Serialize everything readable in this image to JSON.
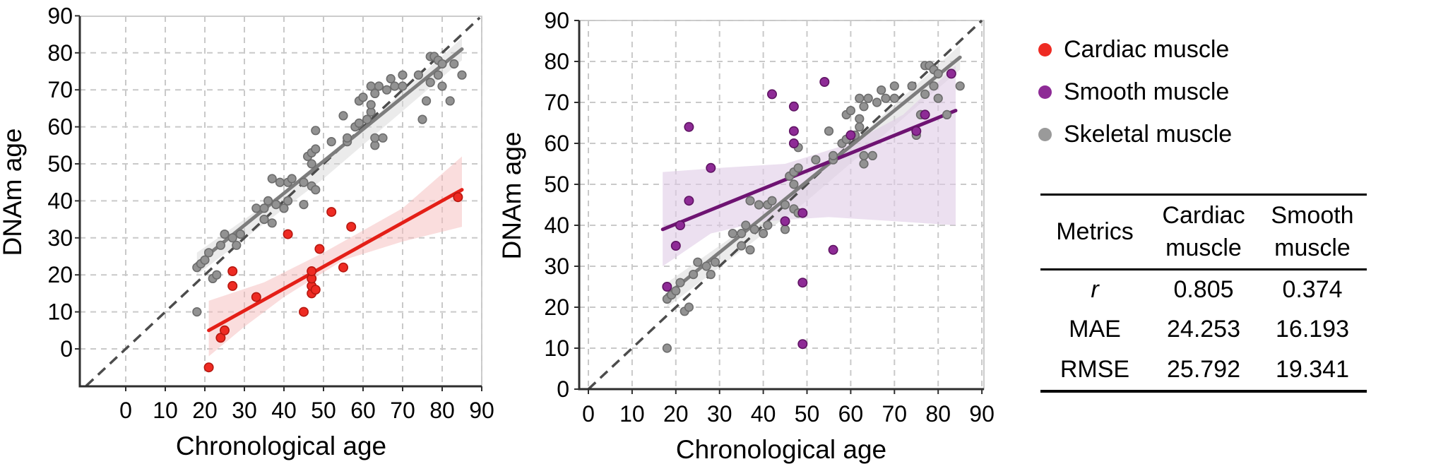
{
  "colors": {
    "grid": "#c9c9c9",
    "axis": "#2e2e2e",
    "identity": "#4c4c4c",
    "text": "#000000"
  },
  "legend": {
    "items": [
      {
        "label": "Cardiac muscle",
        "color": "#ee2b23"
      },
      {
        "label": "Smooth muscle",
        "color": "#8e2b96"
      },
      {
        "label": "Skeletal muscle",
        "color": "#9a9a9a"
      }
    ]
  },
  "table": {
    "header": {
      "metrics": "Metrics",
      "cols": [
        "Cardiac muscle",
        "Smooth muscle"
      ]
    },
    "rows": [
      {
        "label": "r",
        "values": [
          "0.805",
          "0.374"
        ]
      },
      {
        "label": "MAE",
        "values": [
          "24.253",
          "16.193"
        ]
      },
      {
        "label": "RMSE",
        "values": [
          "25.792",
          "19.341"
        ]
      }
    ]
  },
  "chart_data": [
    {
      "type": "scatter",
      "name": "cardiac-vs-skeletal",
      "xlabel": "Chronological age",
      "ylabel": "DNAm age",
      "x_ticks": [
        0,
        10,
        20,
        30,
        40,
        50,
        60,
        70,
        80,
        90
      ],
      "y_ticks": [
        0,
        10,
        20,
        30,
        40,
        50,
        60,
        70,
        80,
        90
      ],
      "xlim": [
        -11,
        90
      ],
      "ylim": [
        -10,
        90
      ],
      "grid": true,
      "legend_position": "outside-right",
      "identity": [
        [
          -10,
          -10
        ],
        [
          89.5,
          89.5
        ]
      ],
      "series": [
        {
          "name": "Skeletal muscle",
          "color": "#929292",
          "edge": "#6d6d6d",
          "line_color": "#7d7d7d",
          "band_color": "#d8d8d8",
          "band_opacity": 0.5,
          "r": 5.8,
          "regression": [
            [
              18,
              23
            ],
            [
              85,
              81
            ]
          ],
          "band": [
            [
              18,
              26
            ],
            [
              50,
              50
            ],
            [
              85,
              84
            ],
            [
              85,
              78
            ],
            [
              50,
              46
            ],
            [
              18,
              20
            ]
          ],
          "points": [
            [
              18,
              10
            ],
            [
              18,
              22
            ],
            [
              19,
              23
            ],
            [
              20,
              24
            ],
            [
              21,
              26
            ],
            [
              22,
              19
            ],
            [
              23,
              20
            ],
            [
              24,
              28
            ],
            [
              25,
              31
            ],
            [
              27,
              30
            ],
            [
              28,
              28
            ],
            [
              29,
              31
            ],
            [
              33,
              38
            ],
            [
              35,
              35
            ],
            [
              35,
              38
            ],
            [
              36,
              40
            ],
            [
              37,
              34
            ],
            [
              37,
              46
            ],
            [
              38,
              39
            ],
            [
              39,
              45
            ],
            [
              40,
              38
            ],
            [
              41,
              40
            ],
            [
              41,
              45
            ],
            [
              42,
              46
            ],
            [
              45,
              39
            ],
            [
              45,
              45
            ],
            [
              46,
              52
            ],
            [
              47,
              44
            ],
            [
              47,
              50
            ],
            [
              47,
              53
            ],
            [
              48,
              43
            ],
            [
              48,
              54
            ],
            [
              48,
              59
            ],
            [
              52,
              56
            ],
            [
              55,
              63
            ],
            [
              56,
              56
            ],
            [
              56,
              57
            ],
            [
              58,
              60
            ],
            [
              59,
              61
            ],
            [
              59,
              67
            ],
            [
              60,
              68
            ],
            [
              61,
              62
            ],
            [
              62,
              64
            ],
            [
              62,
              66
            ],
            [
              62,
              71
            ],
            [
              63,
              55
            ],
            [
              63,
              57
            ],
            [
              63,
              69
            ],
            [
              64,
              71
            ],
            [
              65,
              57
            ],
            [
              66,
              70
            ],
            [
              67,
              73
            ],
            [
              68,
              71
            ],
            [
              70,
              71
            ],
            [
              70,
              74
            ],
            [
              74,
              74
            ],
            [
              75,
              62
            ],
            [
              76,
              67
            ],
            [
              77,
              72
            ],
            [
              77,
              79
            ],
            [
              78,
              79
            ],
            [
              79,
              74
            ],
            [
              79,
              78
            ],
            [
              80,
              71
            ],
            [
              80,
              77
            ],
            [
              82,
              67
            ],
            [
              83,
              77
            ],
            [
              85,
              74
            ]
          ]
        },
        {
          "name": "Cardiac muscle",
          "color": "#ee2b23",
          "edge": "#b5170f",
          "line_color": "#e41f17",
          "band_color": "#f5bcbc",
          "band_opacity": 0.5,
          "r": 6.2,
          "regression": [
            [
              21,
              5
            ],
            [
              85,
              43
            ]
          ],
          "band": [
            [
              21,
              13
            ],
            [
              35,
              18
            ],
            [
              50,
              26
            ],
            [
              70,
              38
            ],
            [
              85,
              52
            ],
            [
              85,
              33
            ],
            [
              70,
              29
            ],
            [
              55,
              24
            ],
            [
              40,
              14
            ],
            [
              30,
              6
            ],
            [
              21,
              -2
            ]
          ],
          "points": [
            [
              21,
              -5
            ],
            [
              24,
              3
            ],
            [
              25,
              5
            ],
            [
              27,
              17
            ],
            [
              27,
              21
            ],
            [
              33,
              14
            ],
            [
              41,
              31
            ],
            [
              45,
              10
            ],
            [
              47,
              15
            ],
            [
              47,
              17
            ],
            [
              47,
              19
            ],
            [
              47,
              21
            ],
            [
              48,
              16
            ],
            [
              49,
              27
            ],
            [
              52,
              37
            ],
            [
              55,
              22
            ],
            [
              57,
              33
            ],
            [
              84,
              41
            ]
          ]
        }
      ]
    },
    {
      "type": "scatter",
      "name": "smooth-vs-skeletal",
      "xlabel": "Chronological age",
      "ylabel": "DNAm age",
      "x_ticks": [
        0,
        10,
        20,
        30,
        40,
        50,
        60,
        70,
        80,
        90
      ],
      "y_ticks": [
        0,
        10,
        20,
        30,
        40,
        50,
        60,
        70,
        80,
        90
      ],
      "xlim": [
        -2,
        91
      ],
      "ylim": [
        0,
        90
      ],
      "grid": true,
      "legend_position": "outside-right",
      "identity": [
        [
          0,
          0
        ],
        [
          90,
          90
        ]
      ],
      "series": [
        {
          "name": "Skeletal muscle",
          "color": "#929292",
          "edge": "#6d6d6d",
          "line_color": "#7d7d7d",
          "band_color": "#d8d8d8",
          "band_opacity": 0.5,
          "r": 5.8,
          "regression": [
            [
              18,
              23
            ],
            [
              85,
              81
            ]
          ],
          "band": [
            [
              18,
              26
            ],
            [
              50,
              50
            ],
            [
              85,
              84
            ],
            [
              85,
              78
            ],
            [
              50,
              46
            ],
            [
              18,
              20
            ]
          ],
          "points": [
            [
              18,
              10
            ],
            [
              18,
              22
            ],
            [
              19,
              23
            ],
            [
              20,
              24
            ],
            [
              21,
              26
            ],
            [
              22,
              19
            ],
            [
              23,
              20
            ],
            [
              24,
              28
            ],
            [
              25,
              31
            ],
            [
              27,
              30
            ],
            [
              28,
              28
            ],
            [
              29,
              31
            ],
            [
              33,
              38
            ],
            [
              35,
              35
            ],
            [
              35,
              38
            ],
            [
              36,
              40
            ],
            [
              37,
              34
            ],
            [
              37,
              46
            ],
            [
              38,
              39
            ],
            [
              39,
              45
            ],
            [
              40,
              38
            ],
            [
              41,
              40
            ],
            [
              41,
              45
            ],
            [
              42,
              46
            ],
            [
              45,
              39
            ],
            [
              45,
              45
            ],
            [
              46,
              52
            ],
            [
              47,
              44
            ],
            [
              47,
              50
            ],
            [
              47,
              53
            ],
            [
              48,
              43
            ],
            [
              48,
              54
            ],
            [
              48,
              59
            ],
            [
              52,
              56
            ],
            [
              55,
              63
            ],
            [
              56,
              56
            ],
            [
              56,
              57
            ],
            [
              58,
              60
            ],
            [
              59,
              61
            ],
            [
              59,
              67
            ],
            [
              60,
              68
            ],
            [
              61,
              62
            ],
            [
              62,
              64
            ],
            [
              62,
              66
            ],
            [
              62,
              71
            ],
            [
              63,
              55
            ],
            [
              63,
              57
            ],
            [
              63,
              69
            ],
            [
              64,
              71
            ],
            [
              65,
              57
            ],
            [
              66,
              70
            ],
            [
              67,
              73
            ],
            [
              68,
              71
            ],
            [
              70,
              71
            ],
            [
              70,
              74
            ],
            [
              74,
              74
            ],
            [
              75,
              62
            ],
            [
              76,
              67
            ],
            [
              77,
              72
            ],
            [
              77,
              79
            ],
            [
              78,
              79
            ],
            [
              79,
              74
            ],
            [
              79,
              78
            ],
            [
              80,
              71
            ],
            [
              80,
              77
            ],
            [
              82,
              67
            ],
            [
              83,
              77
            ],
            [
              85,
              74
            ]
          ]
        },
        {
          "name": "Smooth muscle",
          "color": "#8e2b96",
          "edge": "#5f1463",
          "line_color": "#6e1372",
          "band_color": "#e0cbe6",
          "band_opacity": 0.6,
          "r": 6.2,
          "regression": [
            [
              17,
              39
            ],
            [
              84,
              68
            ]
          ],
          "band": [
            [
              17,
              53
            ],
            [
              30,
              54
            ],
            [
              45,
              55
            ],
            [
              60,
              60
            ],
            [
              72,
              67
            ],
            [
              84,
              79
            ],
            [
              84,
              40
            ],
            [
              70,
              41
            ],
            [
              55,
              42
            ],
            [
              40,
              41
            ],
            [
              28,
              38
            ],
            [
              17,
              30
            ]
          ],
          "points": [
            [
              18,
              25
            ],
            [
              20,
              35
            ],
            [
              21,
              40
            ],
            [
              23,
              46
            ],
            [
              23,
              64
            ],
            [
              28,
              54
            ],
            [
              42,
              72
            ],
            [
              45,
              41
            ],
            [
              47,
              60
            ],
            [
              47,
              63
            ],
            [
              47,
              69
            ],
            [
              49,
              11
            ],
            [
              49,
              26
            ],
            [
              49,
              43
            ],
            [
              54,
              75
            ],
            [
              56,
              34
            ],
            [
              60,
              62
            ],
            [
              75,
              63
            ],
            [
              77,
              67
            ],
            [
              83,
              77
            ]
          ]
        }
      ]
    }
  ]
}
